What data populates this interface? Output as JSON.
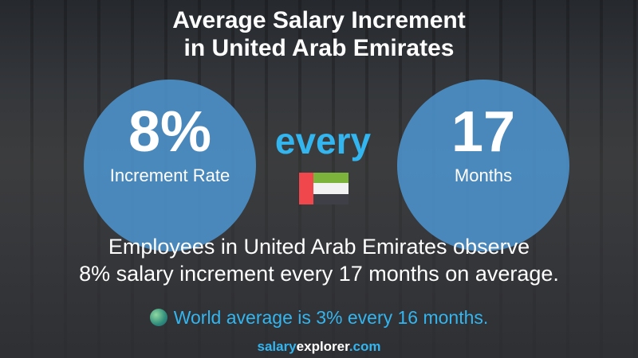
{
  "title_line1": "Average Salary Increment",
  "title_line2": "in United Arab Emirates",
  "rate": {
    "value": "8%",
    "label": "Increment Rate"
  },
  "connector": "every",
  "period": {
    "value": "17",
    "label": "Months"
  },
  "flag": {
    "icon": "uae-flag-icon",
    "colors": {
      "red": "#f0474c",
      "green": "#7cb33a",
      "white": "#f2f2f2",
      "black": "#3f3f48"
    }
  },
  "description_line1": "Employees in United Arab Emirates observe",
  "description_line2": "8% salary increment every 17 months on average.",
  "world": {
    "icon": "globe-icon",
    "text": "World average is 3% every 16 months."
  },
  "brand": {
    "part1": "salary",
    "part2": "explorer",
    "part3": ".com"
  },
  "colors": {
    "accent": "#33b5ef",
    "circle": "#4e96d2"
  }
}
